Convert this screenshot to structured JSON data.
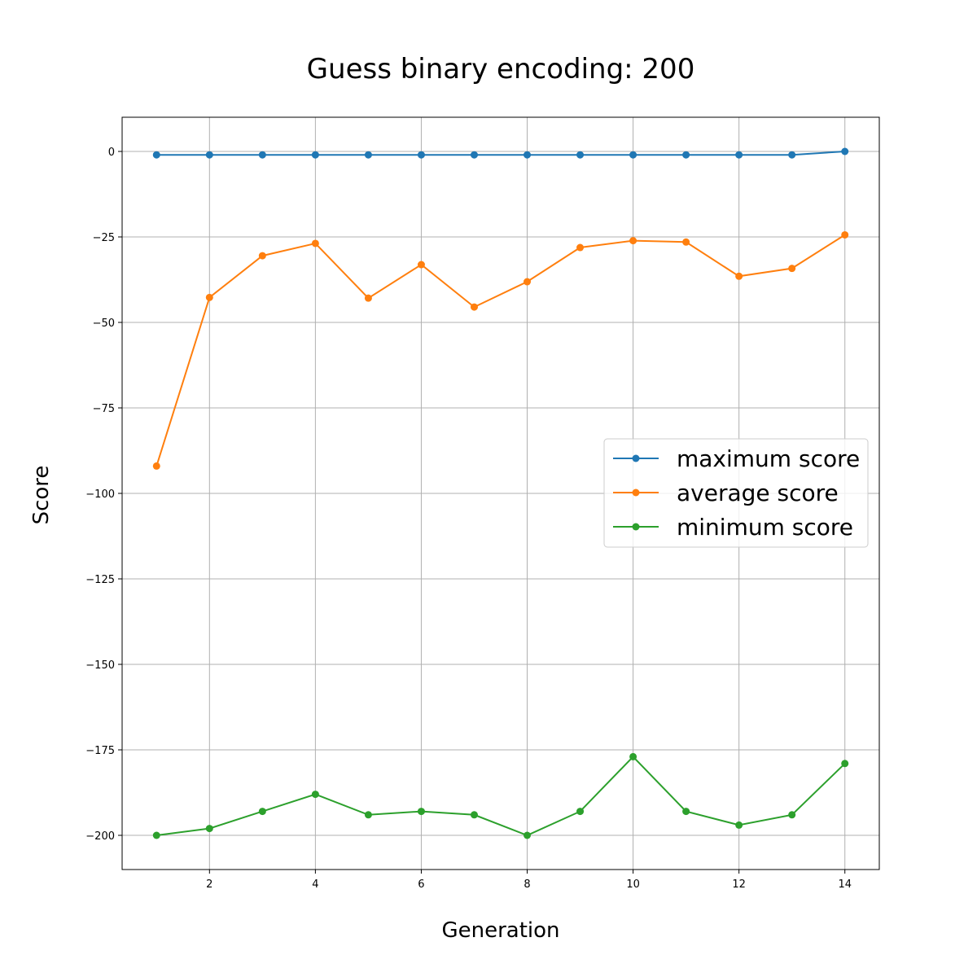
{
  "chart_data": {
    "type": "line",
    "title": "Guess binary encoding: 200",
    "xlabel": "Generation",
    "ylabel": "Score",
    "xlim": [
      0.35,
      14.65
    ],
    "ylim": [
      -210,
      10
    ],
    "xticks": [
      2,
      4,
      6,
      8,
      10,
      12,
      14
    ],
    "yticks": [
      0,
      -25,
      -50,
      -75,
      -100,
      -125,
      -150,
      -175,
      -200
    ],
    "ytick_labels": [
      "0",
      "−25",
      "−50",
      "−75",
      "−100",
      "−125",
      "−150",
      "−175",
      "−200"
    ],
    "grid": true,
    "legend_position": "center-right",
    "x": [
      1,
      2,
      3,
      4,
      5,
      6,
      7,
      8,
      9,
      10,
      11,
      12,
      13,
      14
    ],
    "series": [
      {
        "name": "maximum score",
        "color": "#1f77b4",
        "values": [
          -1,
          -1,
          -1,
          -1,
          -1,
          -1,
          -1,
          -1,
          -1,
          -1,
          -1,
          -1,
          -1,
          0
        ]
      },
      {
        "name": "average score",
        "color": "#ff7f0e",
        "values": [
          -92,
          -42.7,
          -30.5,
          -26.9,
          -42.9,
          -33.1,
          -45.5,
          -38.1,
          -28.1,
          -26.1,
          -26.5,
          -36.5,
          -34.2,
          -24.4
        ]
      },
      {
        "name": "minimum score",
        "color": "#2ca02c",
        "values": [
          -200,
          -198,
          -193,
          -188,
          -194,
          -193,
          -194,
          -200,
          -193,
          -177,
          -193,
          -197,
          -194,
          -179
        ]
      }
    ]
  }
}
